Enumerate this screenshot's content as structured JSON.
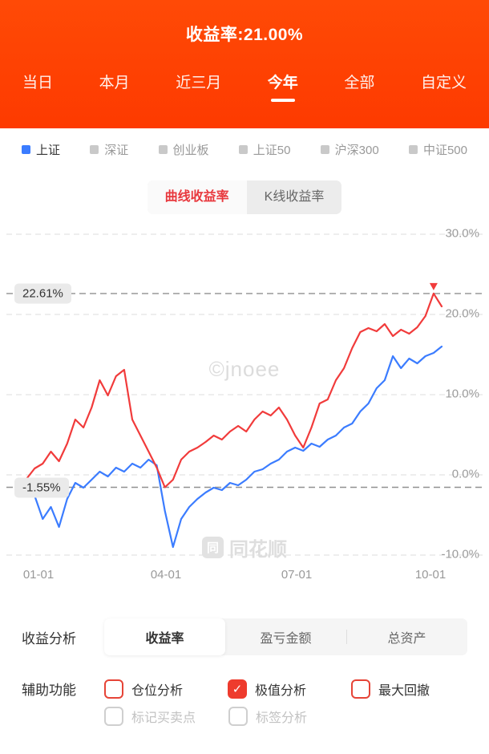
{
  "header": {
    "title": "收益率:21.00%",
    "tabs": [
      {
        "label": "当日",
        "active": false
      },
      {
        "label": "本月",
        "active": false
      },
      {
        "label": "近三月",
        "active": false
      },
      {
        "label": "今年",
        "active": true
      },
      {
        "label": "全部",
        "active": false
      },
      {
        "label": "自定义",
        "active": false
      }
    ]
  },
  "legend": {
    "items": [
      {
        "label": "上证",
        "color": "#3b7cff",
        "active": true
      },
      {
        "label": "深证",
        "color": "#c9c9c9",
        "active": false
      },
      {
        "label": "创业板",
        "color": "#c9c9c9",
        "active": false
      },
      {
        "label": "上证50",
        "color": "#c9c9c9",
        "active": false
      },
      {
        "label": "沪深300",
        "color": "#c9c9c9",
        "active": false
      },
      {
        "label": "中证500",
        "color": "#c9c9c9",
        "active": false
      }
    ]
  },
  "chart_toggle": {
    "options": [
      {
        "label": "曲线收益率",
        "active": true
      },
      {
        "label": "K线收益率",
        "active": false
      }
    ]
  },
  "chart_data": {
    "type": "line",
    "x_ticks": [
      "01-01",
      "04-01",
      "07-01",
      "10-01"
    ],
    "y_ticks": [
      "30.0%",
      "20.0%",
      "10.0%",
      "0.0%",
      "-10.0%"
    ],
    "y_tick_values": [
      30,
      20,
      10,
      0,
      -10
    ],
    "ylim": [
      -10,
      30
    ],
    "grid": "dashed",
    "legend_position": "none",
    "series": [
      {
        "name": "收益率",
        "color": "#f13b3b",
        "values": [
          -0.5,
          0.8,
          1.4,
          2.9,
          1.7,
          3.9,
          6.9,
          5.9,
          8.4,
          11.8,
          9.9,
          12.3,
          13.1,
          6.9,
          4.9,
          2.9,
          0.9,
          -1.55,
          -0.6,
          1.9,
          2.9,
          3.4,
          4.1,
          4.9,
          4.4,
          5.4,
          6.1,
          5.4,
          6.9,
          7.9,
          7.4,
          8.4,
          6.9,
          4.9,
          3.4,
          5.9,
          8.9,
          9.4,
          11.8,
          13.3,
          15.8,
          17.8,
          18.3,
          17.9,
          18.8,
          17.3,
          18.1,
          17.6,
          18.4,
          19.8,
          22.61,
          21.0
        ]
      },
      {
        "name": "上证",
        "color": "#3b7cff",
        "values": [
          -1.0,
          -2.6,
          -5.5,
          -4.0,
          -6.5,
          -3.0,
          -1.0,
          -1.6,
          -0.6,
          0.4,
          -0.2,
          0.9,
          0.4,
          1.4,
          0.9,
          1.9,
          1.2,
          -4.5,
          -9.0,
          -5.5,
          -4.0,
          -3.0,
          -2.2,
          -1.6,
          -1.9,
          -1.0,
          -1.3,
          -0.6,
          0.4,
          0.7,
          1.4,
          1.9,
          2.9,
          3.4,
          3.0,
          3.9,
          3.5,
          4.4,
          4.9,
          5.9,
          6.4,
          7.9,
          8.9,
          10.8,
          11.8,
          14.8,
          13.3,
          14.5,
          13.9,
          14.8,
          15.2,
          16.0
        ]
      }
    ],
    "annotations": [
      {
        "label": "22.61%",
        "value": 22.61,
        "type": "max"
      },
      {
        "label": "-1.55%",
        "value": -1.55,
        "type": "min"
      }
    ]
  },
  "watermarks": {
    "center": "©jnoee",
    "brand": "同花顺",
    "logo": "同"
  },
  "analysis": {
    "label": "收益分析",
    "options": [
      {
        "label": "收益率",
        "active": true
      },
      {
        "label": "盈亏金额",
        "active": false
      },
      {
        "label": "总资产",
        "active": false
      }
    ]
  },
  "aux": {
    "label": "辅助功能",
    "checkboxes": [
      {
        "label": "仓位分析",
        "checked": false,
        "enabled": true
      },
      {
        "label": "极值分析",
        "checked": true,
        "enabled": true
      },
      {
        "label": "最大回撤",
        "checked": false,
        "enabled": true
      },
      {
        "label": "标记买卖点",
        "checked": false,
        "enabled": false
      },
      {
        "label": "标签分析",
        "checked": false,
        "enabled": false
      }
    ]
  },
  "colors": {
    "header_orange": "#fd3a00",
    "line_red": "#f13b3b",
    "line_blue": "#3b7cff",
    "checkbox_red": "#ee3b2d",
    "grid_gray": "#dcdcdc"
  }
}
